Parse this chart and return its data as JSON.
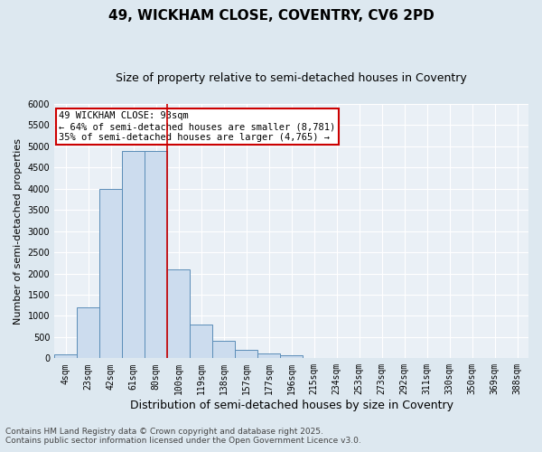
{
  "title1": "49, WICKHAM CLOSE, COVENTRY, CV6 2PD",
  "title2": "Size of property relative to semi-detached houses in Coventry",
  "xlabel": "Distribution of semi-detached houses by size in Coventry",
  "ylabel": "Number of semi-detached properties",
  "categories": [
    "4sqm",
    "23sqm",
    "42sqm",
    "61sqm",
    "80sqm",
    "100sqm",
    "119sqm",
    "138sqm",
    "157sqm",
    "177sqm",
    "196sqm",
    "215sqm",
    "234sqm",
    "253sqm",
    "273sqm",
    "292sqm",
    "311sqm",
    "330sqm",
    "350sqm",
    "369sqm",
    "388sqm"
  ],
  "bar_values": [
    100,
    1200,
    4000,
    4900,
    4900,
    2100,
    800,
    420,
    200,
    120,
    70,
    0,
    0,
    0,
    0,
    0,
    0,
    0,
    0,
    0,
    0
  ],
  "bar_color": "#ccdcee",
  "bar_edge_color": "#5b8db8",
  "vline_color": "#cc0000",
  "vline_x": 4.5,
  "ylim": [
    0,
    6000
  ],
  "yticks": [
    0,
    500,
    1000,
    1500,
    2000,
    2500,
    3000,
    3500,
    4000,
    4500,
    5000,
    5500,
    6000
  ],
  "annotation_title": "49 WICKHAM CLOSE: 93sqm",
  "annotation_line1": "← 64% of semi-detached houses are smaller (8,781)",
  "annotation_line2": "35% of semi-detached houses are larger (4,765) →",
  "annotation_color": "#cc0000",
  "footer1": "Contains HM Land Registry data © Crown copyright and database right 2025.",
  "footer2": "Contains public sector information licensed under the Open Government Licence v3.0.",
  "bg_color": "#dde8f0",
  "plot_bg_color": "#eaf0f6",
  "grid_color": "#ffffff",
  "title1_fontsize": 11,
  "title2_fontsize": 9,
  "xlabel_fontsize": 9,
  "ylabel_fontsize": 8,
  "tick_fontsize": 7,
  "footer_fontsize": 6.5,
  "annotation_fontsize": 7.5
}
